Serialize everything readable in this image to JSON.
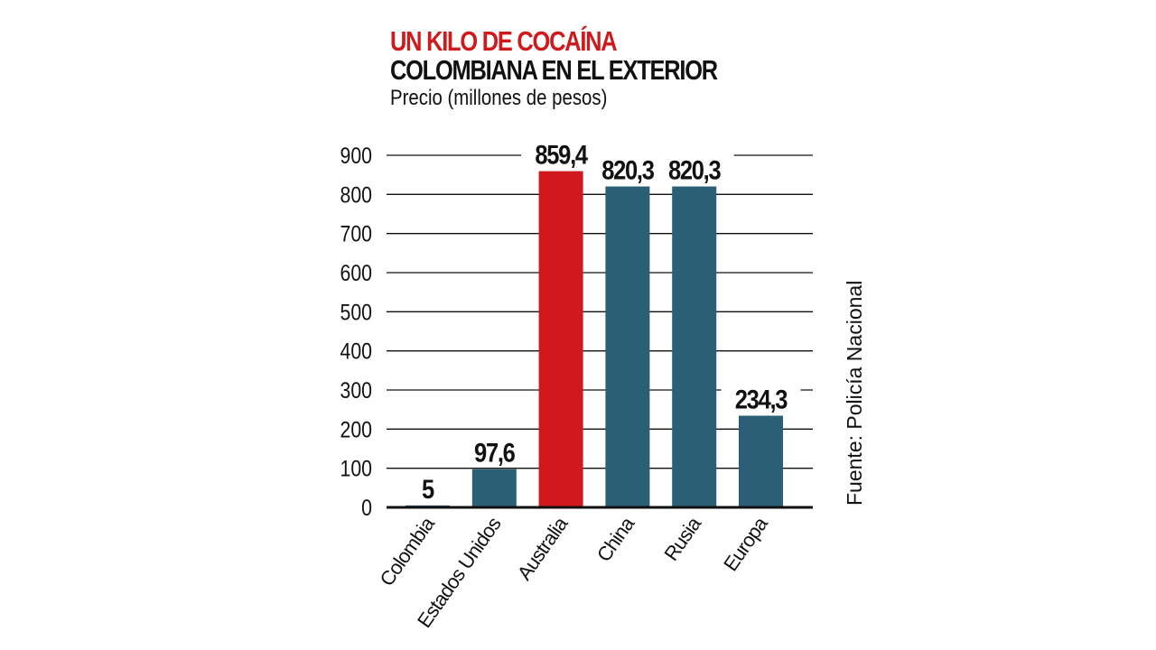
{
  "chart_data": {
    "type": "bar",
    "title": "UN KILO DE COCAÍNA",
    "title_line2": "COLOMBIANA EN EL EXTERIOR",
    "subtitle": "Precio (millones de pesos)",
    "source": "Fuente: Policía Nacional",
    "categories": [
      "Colombia",
      "Estados Unidos",
      "Australia",
      "China",
      "Rusia",
      "Europa"
    ],
    "values": [
      5,
      97.6,
      859.4,
      820.3,
      820.3,
      234.3
    ],
    "data_labels": [
      "5",
      "97,6",
      "859,4",
      "820,3",
      "820,3",
      "234,3"
    ],
    "highlight": "Australia",
    "ylim": [
      0,
      900
    ],
    "yticks": [
      0,
      100,
      200,
      300,
      400,
      500,
      600,
      700,
      800,
      900
    ],
    "grid": true,
    "colors": {
      "bar": "#2b5f75",
      "highlight": "#d0191c",
      "title_accent": "#d0191c"
    }
  }
}
